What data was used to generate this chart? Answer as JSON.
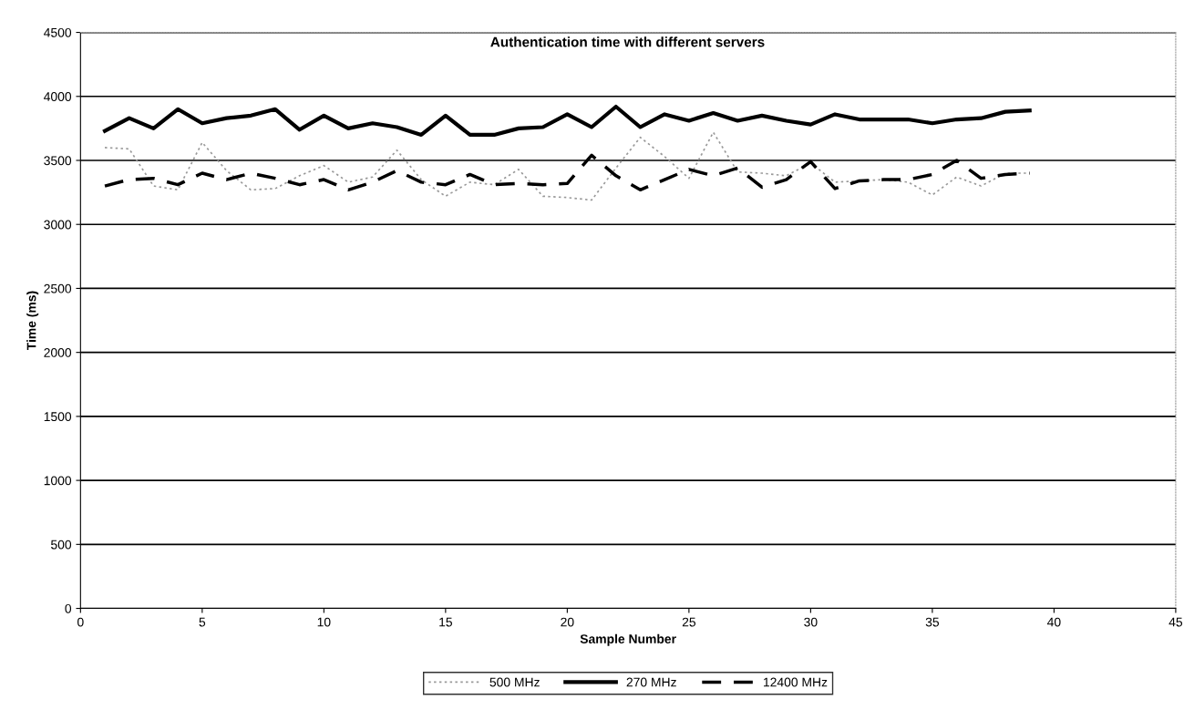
{
  "chart_data": {
    "type": "line",
    "title": "Authentication time with different servers",
    "xlabel": "Sample Number",
    "ylabel": "Time (ms)",
    "x": [
      1,
      2,
      3,
      4,
      5,
      6,
      7,
      8,
      9,
      10,
      11,
      12,
      13,
      14,
      15,
      16,
      17,
      18,
      19,
      20,
      21,
      22,
      23,
      24,
      25,
      26,
      27,
      28,
      29,
      30,
      31,
      32,
      33,
      34,
      35,
      36,
      37,
      38,
      39
    ],
    "series": [
      {
        "name": "500 MHz",
        "color": "#999999",
        "line_style": "dotted",
        "values": [
          3600,
          3590,
          3300,
          3270,
          3640,
          3420,
          3270,
          3280,
          3380,
          3460,
          3330,
          3370,
          3580,
          3350,
          3220,
          3330,
          3310,
          3430,
          3220,
          3210,
          3190,
          3440,
          3680,
          3530,
          3360,
          3720,
          3410,
          3400,
          3380,
          3480,
          3330,
          3340,
          3350,
          3330,
          3230,
          3370,
          3300,
          3400,
          3400
        ]
      },
      {
        "name": "270 MHz",
        "color": "#000000",
        "line_style": "solid",
        "values": [
          3730,
          3830,
          3750,
          3900,
          3790,
          3830,
          3850,
          3900,
          3740,
          3850,
          3750,
          3790,
          3760,
          3700,
          3850,
          3700,
          3700,
          3750,
          3760,
          3860,
          3760,
          3920,
          3760,
          3860,
          3810,
          3870,
          3810,
          3850,
          3810,
          3780,
          3860,
          3820,
          3820,
          3820,
          3790,
          3820,
          3830,
          3880,
          3890
        ]
      },
      {
        "name": "12400 MHz",
        "color": "#000000",
        "line_style": "dashed",
        "values": [
          3300,
          3350,
          3360,
          3310,
          3400,
          3350,
          3400,
          3360,
          3310,
          3350,
          3270,
          3330,
          3420,
          3330,
          3310,
          3390,
          3310,
          3320,
          3310,
          3320,
          3540,
          3380,
          3270,
          3350,
          3430,
          3380,
          3440,
          3290,
          3350,
          3490,
          3280,
          3340,
          3350,
          3350,
          3390,
          3500,
          3360,
          3390,
          3400
        ]
      }
    ],
    "xlim": [
      0,
      45
    ],
    "xticks": [
      0,
      5,
      10,
      15,
      20,
      25,
      30,
      35,
      40,
      45
    ],
    "ylim": [
      0,
      4500
    ],
    "yticks": [
      0,
      500,
      1000,
      1500,
      2000,
      2500,
      3000,
      3500,
      4000,
      4500
    ],
    "grid": "y",
    "legend": "bottom",
    "marker": "none"
  }
}
